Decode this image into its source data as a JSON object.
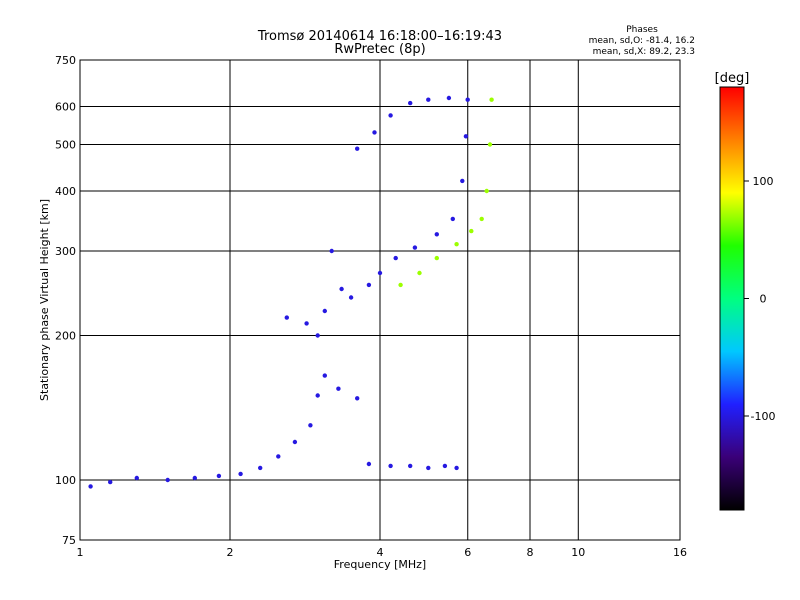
{
  "chart_data": {
    "type": "scatter",
    "title_line1": "Tromsø 20140614 16:18:00–16:19:43",
    "title_line2": "RwPretec (8p)",
    "stats_title": "Phases",
    "stats_o": "mean, sd,O:  -81.4, 16.2",
    "stats_x": "mean, sd,X:  89.2, 23.3",
    "xlabel": "Frequency [MHz]",
    "ylabel": "Stationary phase Virtual Height [km]",
    "x_scale": "log",
    "y_scale": "log",
    "xlim": [
      1,
      16
    ],
    "ylim": [
      75,
      750
    ],
    "x_ticks": [
      1,
      2,
      4,
      6,
      8,
      10,
      16
    ],
    "y_ticks": [
      75,
      100,
      200,
      300,
      400,
      500,
      600,
      750
    ],
    "x_gridlines": [
      2,
      4,
      6,
      8,
      10
    ],
    "y_gridlines": [
      100,
      200,
      300,
      400,
      500,
      600
    ],
    "grid": true,
    "colorbar": {
      "label": "[deg]",
      "ticks": [
        100,
        0,
        -100
      ],
      "range": [
        -180,
        180
      ],
      "colors": [
        "#000000",
        "#3a0078",
        "#2020ff",
        "#00c8ff",
        "#00ff80",
        "#20ff00",
        "#ffff00",
        "#ff8000",
        "#ff0000"
      ]
    },
    "series": [
      {
        "color_deg": -100,
        "segments": [
          [
            [
              1.05,
              97
            ],
            [
              1.15,
              99
            ],
            [
              1.3,
              101
            ],
            [
              1.5,
              100
            ],
            [
              1.7,
              101
            ],
            [
              1.9,
              102
            ],
            [
              2.1,
              103
            ],
            [
              2.3,
              106
            ],
            [
              2.5,
              112
            ],
            [
              2.7,
              120
            ],
            [
              2.9,
              130
            ],
            [
              3.0,
              150
            ],
            [
              3.1,
              165
            ],
            [
              3.3,
              155
            ],
            [
              3.6,
              148
            ]
          ],
          [
            [
              2.6,
              218
            ],
            [
              2.85,
              212
            ],
            [
              3.0,
              200
            ],
            [
              3.1,
              225
            ],
            [
              3.2,
              300
            ],
            [
              3.35,
              250
            ],
            [
              3.5,
              240
            ],
            [
              3.8,
              255
            ],
            [
              4.0,
              270
            ],
            [
              4.3,
              290
            ],
            [
              4.7,
              305
            ],
            [
              5.2,
              325
            ],
            [
              5.6,
              350
            ],
            [
              5.85,
              420
            ],
            [
              5.95,
              520
            ],
            [
              6.0,
              620
            ]
          ],
          [
            [
              3.6,
              490
            ],
            [
              3.9,
              530
            ],
            [
              4.2,
              575
            ],
            [
              4.6,
              610
            ],
            [
              5.0,
              620
            ],
            [
              5.5,
              625
            ]
          ],
          [
            [
              3.8,
              108
            ],
            [
              4.2,
              107
            ],
            [
              4.6,
              107
            ],
            [
              5.0,
              106
            ],
            [
              5.4,
              107
            ],
            [
              5.7,
              106
            ]
          ]
        ]
      },
      {
        "color_deg": 70,
        "segments": [
          [
            [
              4.4,
              255
            ],
            [
              4.8,
              270
            ],
            [
              5.2,
              290
            ],
            [
              5.7,
              310
            ],
            [
              6.1,
              330
            ],
            [
              6.4,
              350
            ],
            [
              6.55,
              400
            ],
            [
              6.65,
              500
            ],
            [
              6.7,
              620
            ]
          ]
        ]
      }
    ]
  }
}
